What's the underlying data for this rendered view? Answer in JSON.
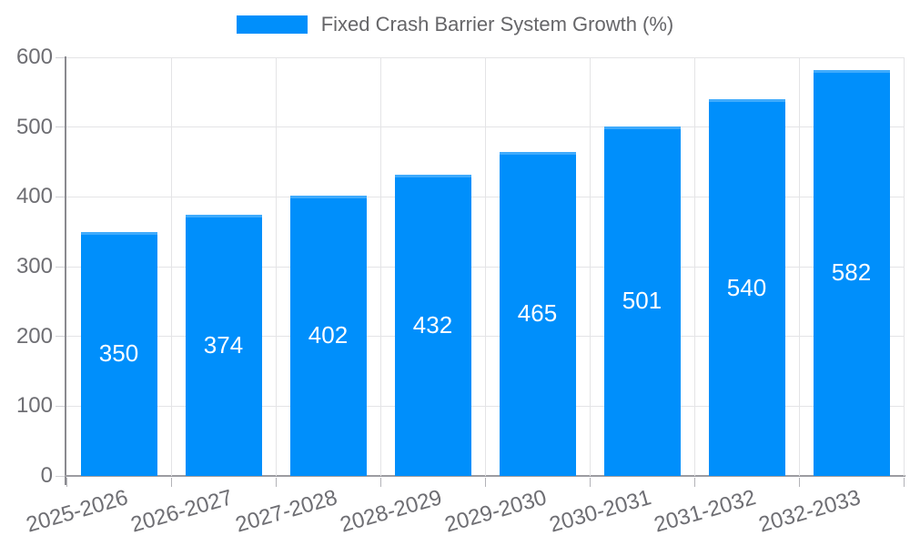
{
  "chart_data": {
    "type": "bar",
    "title": "Fixed Crash Barrier System Growth (%)",
    "categories": [
      "2025-2026",
      "2026-2027",
      "2027-2028",
      "2028-2029",
      "2029-2030",
      "2030-2031",
      "2031-2032",
      "2032-2033"
    ],
    "values": [
      350,
      374,
      402,
      432,
      465,
      501,
      540,
      582
    ],
    "xlabel": "",
    "ylabel": "",
    "ylim": [
      0,
      600
    ],
    "yticks": [
      0,
      100,
      200,
      300,
      400,
      500,
      600
    ],
    "grid": true,
    "legend_position": "top",
    "colors": {
      "bar": "#008FFB",
      "bar_label": "#ffffff",
      "axis_text": "#6e6e73",
      "legend_text": "#666669",
      "grid_line": "#e4e4e6",
      "axis_line": "#8a8a8f"
    }
  }
}
